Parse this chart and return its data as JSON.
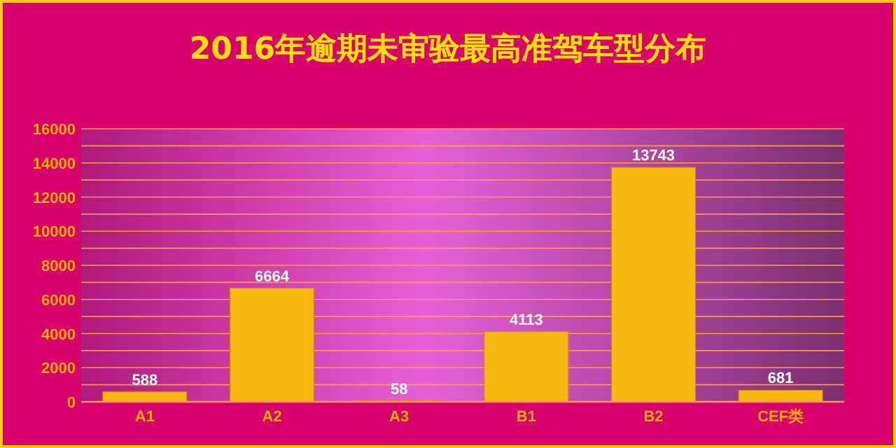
{
  "chart_data": {
    "type": "bar",
    "title": "2016年逾期未审验最高准驾车型分布",
    "categories": [
      "A1",
      "A2",
      "A3",
      "B1",
      "B2",
      "CEF类"
    ],
    "values": [
      588,
      6664,
      58,
      4113,
      13743,
      681
    ],
    "color": "#f7b90f",
    "ylim": [
      0,
      16000
    ],
    "yticks": [
      0,
      {
        "value": 1000,
        "label": null
      },
      2000,
      {
        "value": 3000,
        "label": null
      },
      4000,
      {
        "value": 5000,
        "label": null
      },
      6000,
      {
        "value": 7000,
        "label": null
      },
      8000,
      {
        "value": 9000,
        "label": null
      },
      10000,
      {
        "value": 11000,
        "label": null
      },
      12000,
      {
        "value": 13000,
        "label": null
      },
      14000,
      {
        "value": 15000,
        "label": null
      },
      16000
    ],
    "grid": "y",
    "data_labels": true
  }
}
